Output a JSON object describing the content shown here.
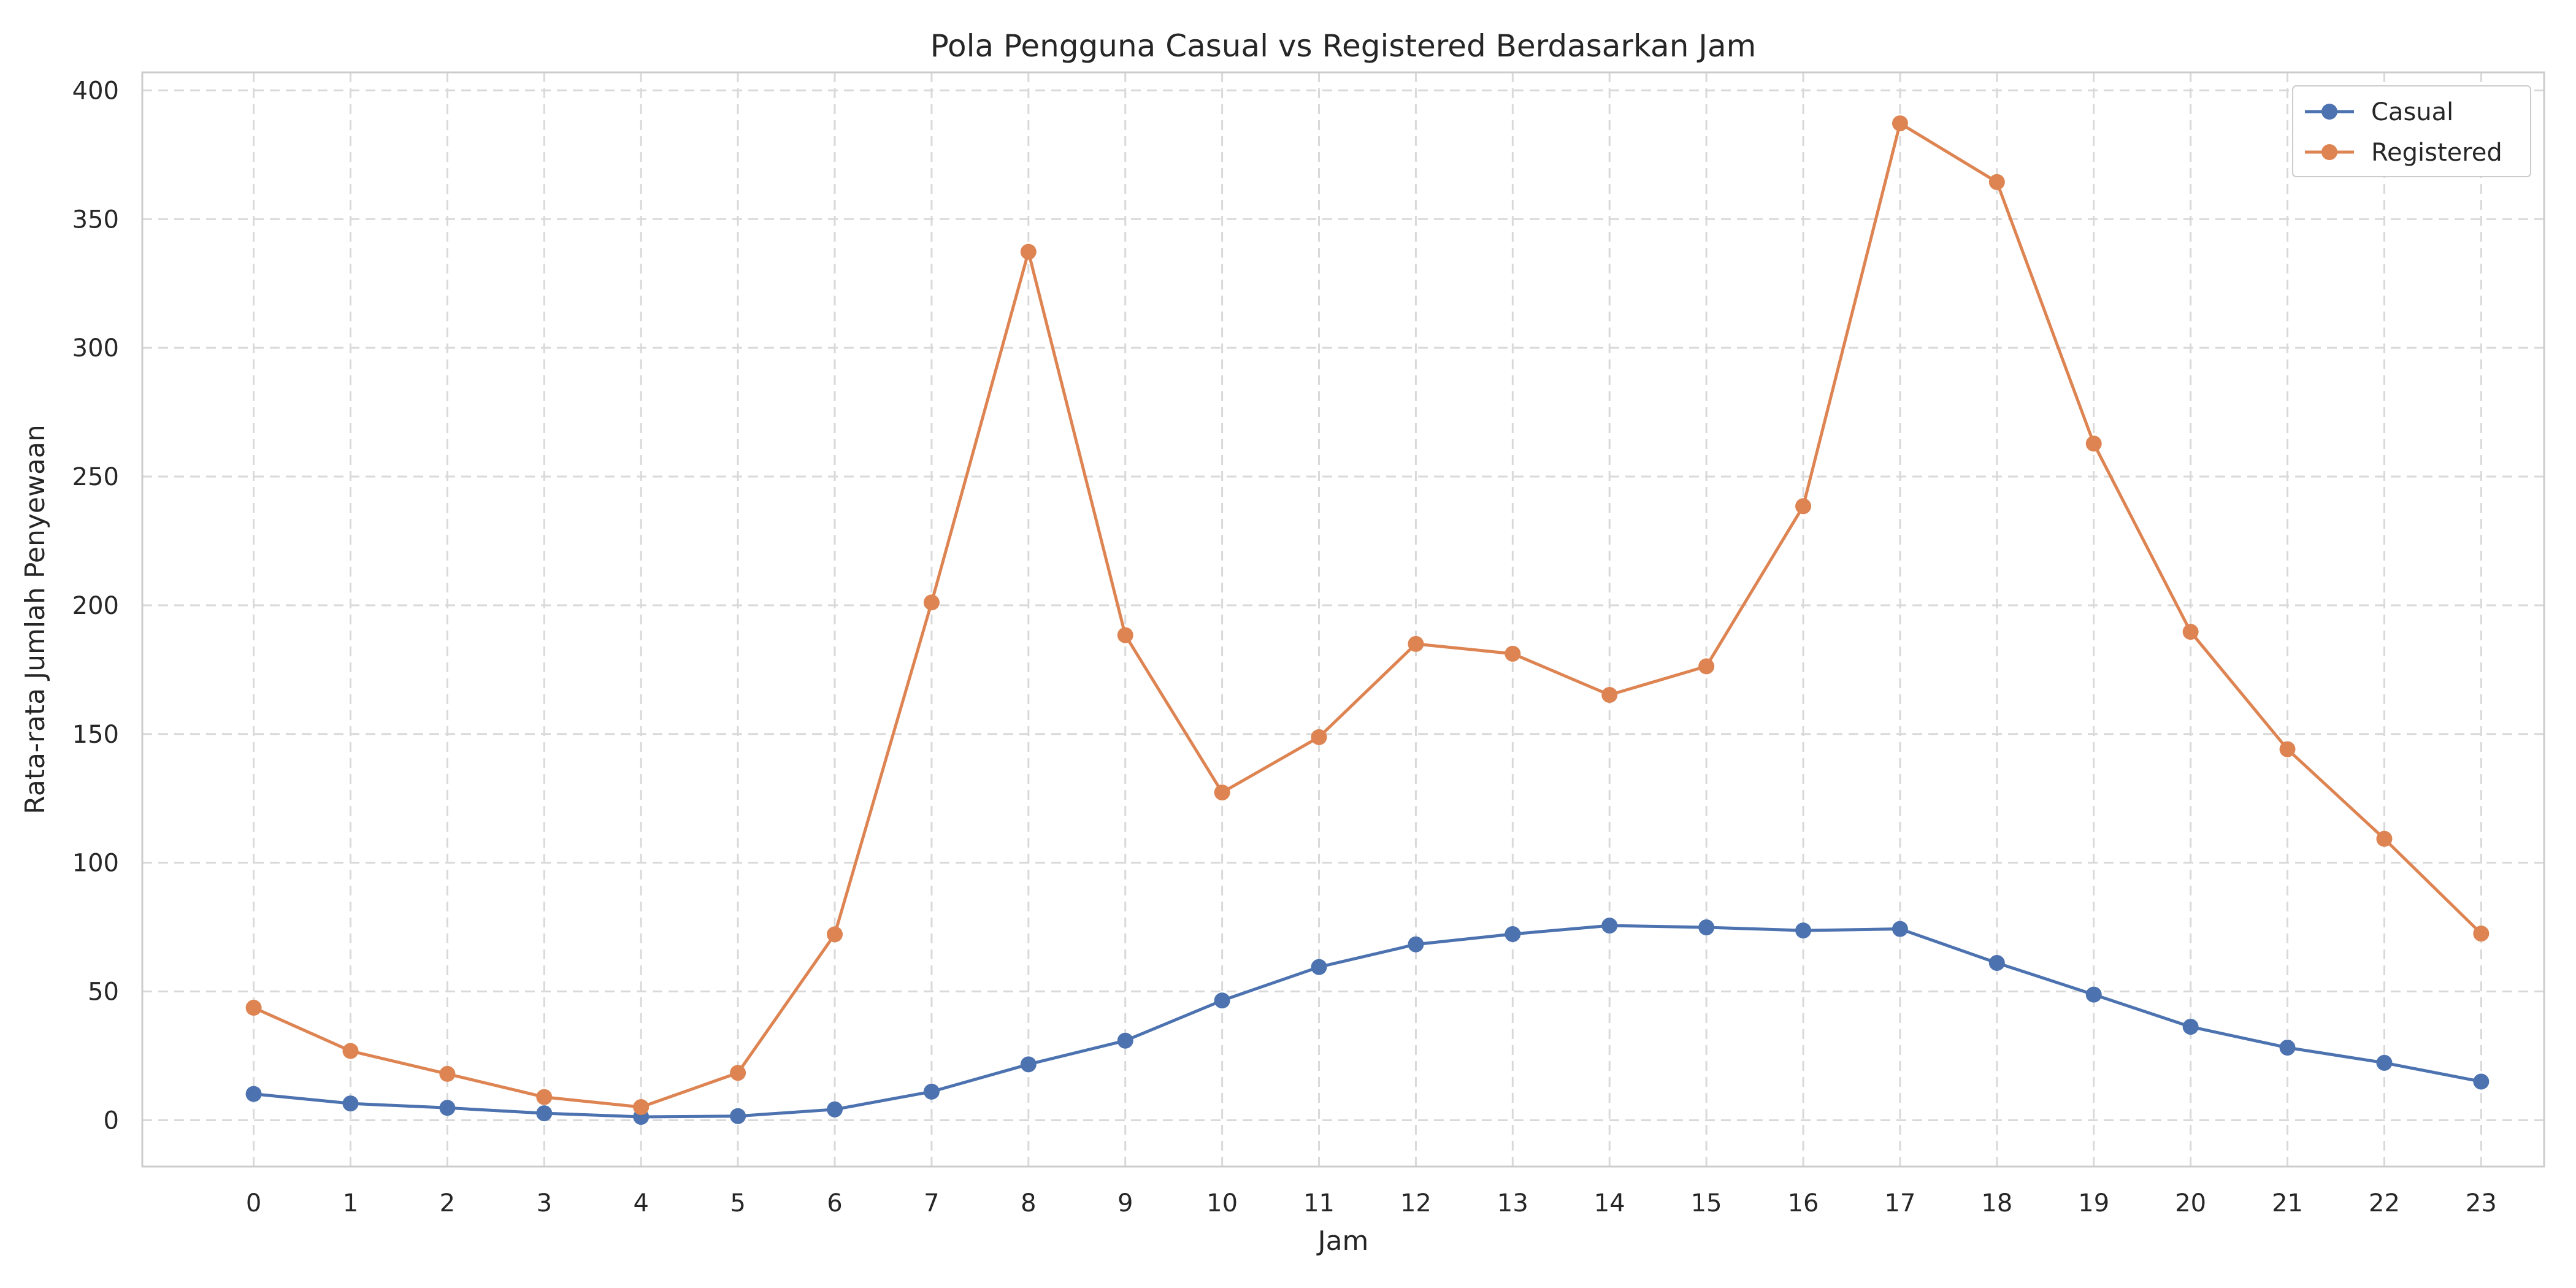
{
  "chart_data": {
    "type": "line",
    "title": "Pola Pengguna Casual vs Registered Berdasarkan Jam",
    "xlabel": "Jam",
    "ylabel": "Rata-rata Jumlah Penyewaan",
    "x": [
      0,
      1,
      2,
      3,
      4,
      5,
      6,
      7,
      8,
      9,
      10,
      11,
      12,
      13,
      14,
      15,
      16,
      17,
      18,
      19,
      20,
      21,
      22,
      23
    ],
    "x_tick_labels": [
      "0",
      "1",
      "2",
      "3",
      "4",
      "5",
      "6",
      "7",
      "8",
      "9",
      "10",
      "11",
      "12",
      "13",
      "14",
      "15",
      "16",
      "17",
      "18",
      "19",
      "20",
      "21",
      "22",
      "23"
    ],
    "y_tick_values": [
      0,
      50,
      100,
      150,
      200,
      250,
      300,
      350,
      400
    ],
    "y_tick_labels": [
      "0",
      "50",
      "100",
      "150",
      "200",
      "250",
      "300",
      "350",
      "400"
    ],
    "xlim": [
      -1.15,
      23.65
    ],
    "ylim": [
      -18,
      407
    ],
    "grid": true,
    "grid_style": "dashed",
    "legend_position": "top-right",
    "marker": "circle",
    "series": [
      {
        "name": "Casual",
        "color": "#4c72b0",
        "values": [
          10.2,
          6.5,
          4.8,
          2.7,
          1.3,
          1.6,
          4.2,
          11.1,
          21.7,
          30.9,
          46.5,
          59.5,
          68.3,
          72.3,
          75.6,
          74.9,
          73.7,
          74.3,
          61.1,
          48.8,
          36.3,
          28.2,
          22.3,
          15.0
        ]
      },
      {
        "name": "Registered",
        "color": "#dd8452",
        "values": [
          43.7,
          26.9,
          18.0,
          9.0,
          5.1,
          18.4,
          72.2,
          201.1,
          337.3,
          188.4,
          127.3,
          148.8,
          185.0,
          181.2,
          165.2,
          176.3,
          238.5,
          387.2,
          364.4,
          262.8,
          189.7,
          144.1,
          109.3,
          72.5
        ]
      }
    ]
  }
}
